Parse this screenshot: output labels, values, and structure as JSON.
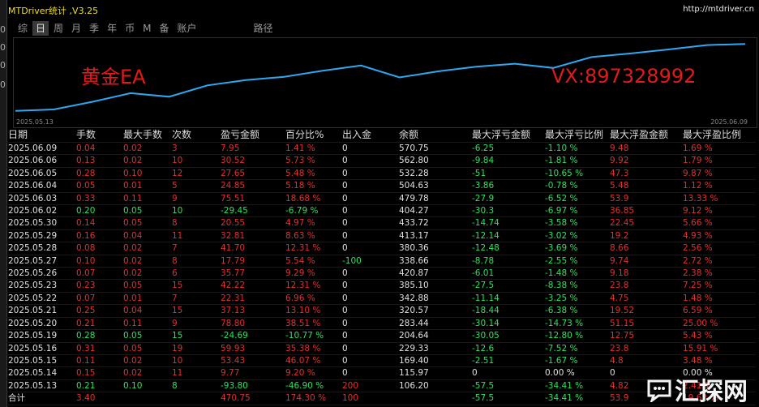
{
  "window": {
    "title": "MTDriver统计 ,V3.25",
    "url": "http://mtdriver.cn"
  },
  "tabs": [
    {
      "label": "综",
      "active": false
    },
    {
      "label": "日",
      "active": true
    },
    {
      "label": "周",
      "active": false
    },
    {
      "label": "月",
      "active": false
    },
    {
      "label": "季",
      "active": false
    },
    {
      "label": "年",
      "active": false
    },
    {
      "label": "币",
      "active": false
    },
    {
      "label": "M",
      "active": false
    },
    {
      "label": "备",
      "active": false
    },
    {
      "label": "账户",
      "active": false
    },
    {
      "label": "路径",
      "active": false
    }
  ],
  "chart": {
    "overlay_left": "黄金EA",
    "overlay_right": "VX:897328992",
    "start_date": "2025.05.13",
    "end_date": "2025.06.09",
    "line_color": "#2ea8f0"
  },
  "chart_data": {
    "type": "line",
    "x": [
      "2025.05.13",
      "2025.05.14",
      "2025.05.15",
      "2025.05.16",
      "2025.05.19",
      "2025.05.20",
      "2025.05.21",
      "2025.05.22",
      "2025.05.23",
      "2025.05.26",
      "2025.05.27",
      "2025.05.28",
      "2025.05.29",
      "2025.05.30",
      "2025.06.02",
      "2025.06.03",
      "2025.06.04",
      "2025.06.05",
      "2025.06.06",
      "2025.06.09"
    ],
    "y": [
      106.2,
      115.97,
      169.4,
      229.33,
      204.64,
      283.44,
      320.57,
      342.88,
      385.1,
      420.87,
      338.66,
      380.36,
      413.17,
      433.72,
      404.27,
      479.78,
      504.63,
      532.28,
      562.8,
      570.75
    ]
  },
  "columns": [
    "日期",
    "手数",
    "最大手数",
    "次数",
    "盈亏金额",
    "百分比%",
    "出入金",
    "余额",
    "最大浮亏金额",
    "最大浮亏比例",
    "最大浮盈金额",
    "最大浮盈比例"
  ],
  "rows": [
    [
      "2025.06.09",
      "0.04",
      "0.02",
      "3",
      "7.95",
      "1.41 %",
      "0",
      "570.75",
      "-6.25",
      "-1.10 %",
      "9.48",
      "1.69 %"
    ],
    [
      "2025.06.06",
      "0.13",
      "0.02",
      "10",
      "30.52",
      "5.73 %",
      "0",
      "562.80",
      "-9.84",
      "-1.81 %",
      "9.92",
      "1.79 %"
    ],
    [
      "2025.06.05",
      "0.28",
      "0.10",
      "12",
      "27.65",
      "5.48 %",
      "0",
      "532.28",
      "-51",
      "-10.65 %",
      "47.3",
      "9.87 %"
    ],
    [
      "2025.06.04",
      "0.05",
      "0.01",
      "5",
      "24.85",
      "5.18 %",
      "0",
      "504.63",
      "-3.86",
      "-0.78 %",
      "5.48",
      "1.12 %"
    ],
    [
      "2025.06.03",
      "0.33",
      "0.11",
      "9",
      "75.51",
      "18.68 %",
      "0",
      "479.78",
      "-27.9",
      "-6.52 %",
      "53.9",
      "13.33 %"
    ],
    [
      "2025.06.02",
      "0.20",
      "0.05",
      "10",
      "-29.45",
      "-6.79 %",
      "0",
      "404.27",
      "-30.3",
      "-6.97 %",
      "36.85",
      "9.12 %"
    ],
    [
      "2025.05.30",
      "0.14",
      "0.05",
      "8",
      "20.55",
      "4.97 %",
      "0",
      "433.72",
      "-14.74",
      "-3.58 %",
      "22.45",
      "5.66 %"
    ],
    [
      "2025.05.29",
      "0.16",
      "0.04",
      "11",
      "32.81",
      "8.63 %",
      "0",
      "413.17",
      "-12.14",
      "-3.02 %",
      "19.2",
      "4.93 %"
    ],
    [
      "2025.05.28",
      "0.08",
      "0.02",
      "7",
      "41.70",
      "12.31 %",
      "0",
      "380.36",
      "-12.48",
      "-3.69 %",
      "8.66",
      "2.56 %"
    ],
    [
      "2025.05.27",
      "0.10",
      "0.02",
      "8",
      "17.79",
      "5.54 %",
      "-100",
      "338.66",
      "-8.78",
      "-2.55 %",
      "9.74",
      "2.72 %"
    ],
    [
      "2025.05.26",
      "0.07",
      "0.02",
      "6",
      "35.77",
      "9.29 %",
      "0",
      "420.87",
      "-6.01",
      "-1.48 %",
      "9.18",
      "2.38 %"
    ],
    [
      "2025.05.23",
      "0.23",
      "0.05",
      "15",
      "42.22",
      "12.31 %",
      "0",
      "385.10",
      "-27.5",
      "-8.38 %",
      "23.8",
      "7.25 %"
    ],
    [
      "2025.05.22",
      "0.07",
      "0.01",
      "7",
      "22.31",
      "6.96 %",
      "0",
      "342.88",
      "-11.14",
      "-3.25 %",
      "4.75",
      "1.48 %"
    ],
    [
      "2025.05.21",
      "0.25",
      "0.04",
      "15",
      "37.13",
      "13.10 %",
      "0",
      "320.57",
      "-18.44",
      "-6.38 %",
      "19.52",
      "6.59 %"
    ],
    [
      "2025.05.20",
      "0.21",
      "0.11",
      "9",
      "78.80",
      "38.51 %",
      "0",
      "283.44",
      "-30.14",
      "-14.73 %",
      "51.15",
      "25.00 %"
    ],
    [
      "2025.05.19",
      "0.28",
      "0.05",
      "15",
      "-24.69",
      "-10.77 %",
      "0",
      "204.64",
      "-30.05",
      "-12.80 %",
      "12.75",
      "5.43 %"
    ],
    [
      "2025.05.16",
      "0.31",
      "0.05",
      "19",
      "59.93",
      "35.38 %",
      "0",
      "229.33",
      "-12.6",
      "-7.52 %",
      "23.8",
      "15.91 %"
    ],
    [
      "2025.05.15",
      "0.11",
      "0.02",
      "10",
      "53.43",
      "46.07 %",
      "0",
      "169.40",
      "-2.51",
      "-1.67 %",
      "4.8",
      "3.48 %"
    ],
    [
      "2025.05.14",
      "0.15",
      "0.02",
      "11",
      "9.77",
      "9.20 %",
      "0",
      "115.97",
      "0",
      "0.00 %",
      "0",
      "0.00 %"
    ],
    [
      "2025.05.13",
      "0.21",
      "0.10",
      "8",
      "-93.80",
      "-46.90 %",
      "200",
      "106.20",
      "-57.5",
      "-34.41 %",
      "4.82",
      "2.41 %"
    ]
  ],
  "total": [
    "合计",
    "3.40",
    "",
    "",
    "470.75",
    "174.30 %",
    "100",
    "",
    "-57.5",
    "-34.41 %",
    "53.9",
    "19.62 %"
  ],
  "watermark": "汇探网",
  "colors": {
    "positive": "#e03030",
    "negative": "#2ee060",
    "neutral": "#e0e0e0",
    "title": "#f0e020"
  }
}
